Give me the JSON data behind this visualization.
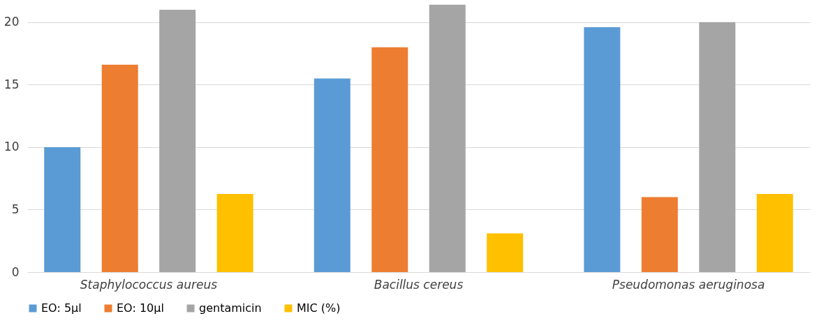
{
  "chart_data": {
    "type": "bar",
    "categories": [
      "Staphylococcus aureus",
      "Bacillus cereus",
      "Pseudomonas aeruginosa"
    ],
    "series": [
      {
        "name": "EO: 5µl",
        "color": "#5b9bd5",
        "values": [
          10,
          15.5,
          19.6
        ]
      },
      {
        "name": "EO: 10µl",
        "color": "#ed7d31",
        "values": [
          16.6,
          18,
          6
        ]
      },
      {
        "name": "gentamicin",
        "color": "#a5a5a5",
        "values": [
          21,
          21.4,
          20
        ]
      },
      {
        "name": "MIC (%)",
        "color": "#ffc000",
        "values": [
          6.25,
          3.1,
          6.25
        ]
      }
    ],
    "ylim": [
      0,
      21.5
    ],
    "yticks": [
      0,
      5,
      10,
      15,
      20
    ],
    "grid": "y",
    "legend": "bottom"
  }
}
